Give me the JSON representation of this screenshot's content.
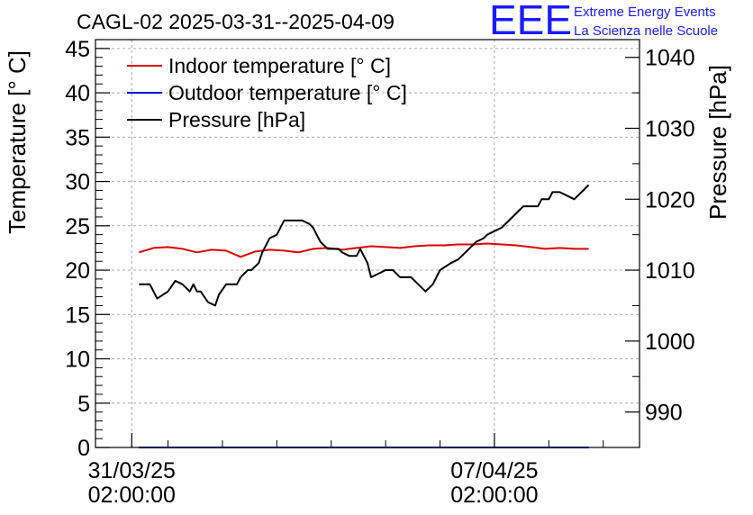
{
  "header": {
    "title": "CAGL-02 2025-03-31--2025-04-09",
    "logo_text": "EEE",
    "logo_line1": "Extreme Energy Events",
    "logo_line2": "La Scienza nelle Scuole"
  },
  "colors": {
    "indoor": "#dd0000",
    "outdoor": "#0000dd",
    "pressure": "#000000",
    "logo": "#1a1aff",
    "grid": "#aaaaaa"
  },
  "chart_data": {
    "type": "line",
    "title": "CAGL-02 2025-03-31--2025-04-09",
    "ylabel": "Temperature [° C]",
    "y2label": "Pressure [hPa]",
    "ylim": [
      0,
      46
    ],
    "y2lim": [
      985,
      1042.5
    ],
    "xlim": [
      -0.1,
      1.4
    ],
    "yticks": [
      0,
      5,
      10,
      15,
      20,
      25,
      30,
      35,
      40,
      45
    ],
    "y2ticks": [
      990,
      1000,
      1010,
      1020,
      1030,
      1040
    ],
    "xticks": [
      {
        "x": 0,
        "line1": "31/03/25",
        "line2": "02:00:00"
      },
      {
        "x": 1,
        "line1": "07/04/25",
        "line2": "02:00:00"
      }
    ],
    "grid": true,
    "legend_position": "top-left",
    "legend": [
      "Indoor temperature [° C]",
      "Outdoor temperature [° C]",
      "Pressure [hPa]"
    ],
    "series": [
      {
        "name": "Indoor temperature [° C]",
        "axis": "left",
        "x": [
          0.02,
          0.06,
          0.1,
          0.14,
          0.18,
          0.22,
          0.26,
          0.3,
          0.34,
          0.38,
          0.42,
          0.46,
          0.5,
          0.54,
          0.58,
          0.62,
          0.66,
          0.7,
          0.74,
          0.78,
          0.82,
          0.86,
          0.9,
          0.94,
          0.98,
          1.02,
          1.06,
          1.1,
          1.14,
          1.18,
          1.22,
          1.26
        ],
        "y": [
          22.0,
          22.5,
          22.6,
          22.4,
          22.0,
          22.3,
          22.2,
          21.5,
          22.1,
          22.3,
          22.2,
          22.0,
          22.4,
          22.5,
          22.3,
          22.5,
          22.7,
          22.6,
          22.5,
          22.7,
          22.8,
          22.8,
          22.9,
          22.9,
          23.0,
          22.9,
          22.8,
          22.6,
          22.4,
          22.5,
          22.4,
          22.4
        ]
      },
      {
        "name": "Outdoor temperature [° C]",
        "axis": "left",
        "x": [
          0.02,
          1.26
        ],
        "y": [
          0,
          0
        ]
      },
      {
        "name": "Pressure [hPa]",
        "axis": "right",
        "x": [
          0.02,
          0.05,
          0.07,
          0.1,
          0.12,
          0.14,
          0.16,
          0.17,
          0.18,
          0.19,
          0.21,
          0.23,
          0.24,
          0.26,
          0.27,
          0.29,
          0.3,
          0.32,
          0.33,
          0.35,
          0.36,
          0.37,
          0.38,
          0.4,
          0.42,
          0.43,
          0.45,
          0.46,
          0.47,
          0.49,
          0.5,
          0.51,
          0.52,
          0.54,
          0.55,
          0.57,
          0.58,
          0.6,
          0.62,
          0.63,
          0.65,
          0.66,
          0.68,
          0.7,
          0.72,
          0.74,
          0.76,
          0.77,
          0.79,
          0.81,
          0.83,
          0.85,
          0.88,
          0.9,
          0.91,
          0.93,
          0.95,
          0.97,
          0.98,
          1.0,
          1.02,
          1.04,
          1.06,
          1.08,
          1.1,
          1.12,
          1.13,
          1.15,
          1.16,
          1.18,
          1.2,
          1.22,
          1.24,
          1.26
        ],
        "y": [
          1008.0,
          1008.0,
          1006.0,
          1007.0,
          1008.5,
          1008.0,
          1007.0,
          1008.0,
          1007.0,
          1007.0,
          1005.5,
          1005.0,
          1006.5,
          1008.0,
          1008.0,
          1008.0,
          1009.0,
          1010.0,
          1010.0,
          1011.0,
          1012.5,
          1013.5,
          1014.5,
          1015.0,
          1017.0,
          1017.0,
          1017.0,
          1017.0,
          1017.0,
          1016.5,
          1016.0,
          1015.0,
          1014.0,
          1013.0,
          1013.0,
          1013.0,
          1012.5,
          1012.0,
          1012.0,
          1013.0,
          1011.0,
          1009.0,
          1009.5,
          1010.0,
          1010.0,
          1009.0,
          1009.0,
          1009.0,
          1008.0,
          1007.0,
          1008.0,
          1010.0,
          1011.0,
          1011.5,
          1012.0,
          1013.0,
          1014.0,
          1014.5,
          1015.0,
          1015.5,
          1016.0,
          1017.0,
          1018.0,
          1019.0,
          1019.0,
          1019.0,
          1020.0,
          1020.0,
          1021.0,
          1021.0,
          1020.5,
          1020.0,
          1021.0,
          1022.0
        ]
      }
    ]
  }
}
